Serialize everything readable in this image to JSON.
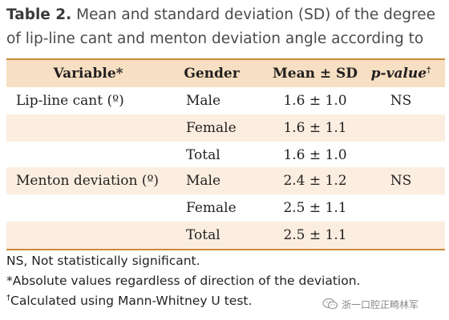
{
  "caption": {
    "label": "Table 2.",
    "text": " Mean and standard deviation (SD) of the degree of lip-line cant and menton deviation angle according to sex"
  },
  "header": {
    "variable": "Variable*",
    "gender": "Gender",
    "mean": "Mean ± SD",
    "p_value": "p-value",
    "p_value_mark": "†"
  },
  "rows": [
    {
      "variable": "Lip-line cant (º)",
      "gender": "Male",
      "mean": "1.6 ± 1.0",
      "p": "NS",
      "shaded": false
    },
    {
      "variable": "",
      "gender": "Female",
      "mean": "1.6 ± 1.1",
      "p": "",
      "shaded": true
    },
    {
      "variable": "",
      "gender": "Total",
      "mean": "1.6 ± 1.0",
      "p": "",
      "shaded": false
    },
    {
      "variable": "Menton deviation (º)",
      "gender": "Male",
      "mean": "2.4 ± 1.2",
      "p": "NS",
      "shaded": true
    },
    {
      "variable": "",
      "gender": "Female",
      "mean": "2.5 ± 1.1",
      "p": "",
      "shaded": false
    },
    {
      "variable": "",
      "gender": "Total",
      "mean": "2.5 ± 1.1",
      "p": "",
      "shaded": true
    }
  ],
  "footnotes": {
    "ns": "NS, Not statistically significant.",
    "absolute": "*Absolute values regardless of direction of the deviation.",
    "mann_mark": "†",
    "mann": "Calculated using Mann-Whitney U test."
  },
  "watermark": {
    "icon": "wechat-icon",
    "text": "浙一口腔正畸林军"
  },
  "colors": {
    "rule": "#c98a3a",
    "header_bg": "#f6dfc2",
    "shaded_bg": "#fbeee0"
  }
}
